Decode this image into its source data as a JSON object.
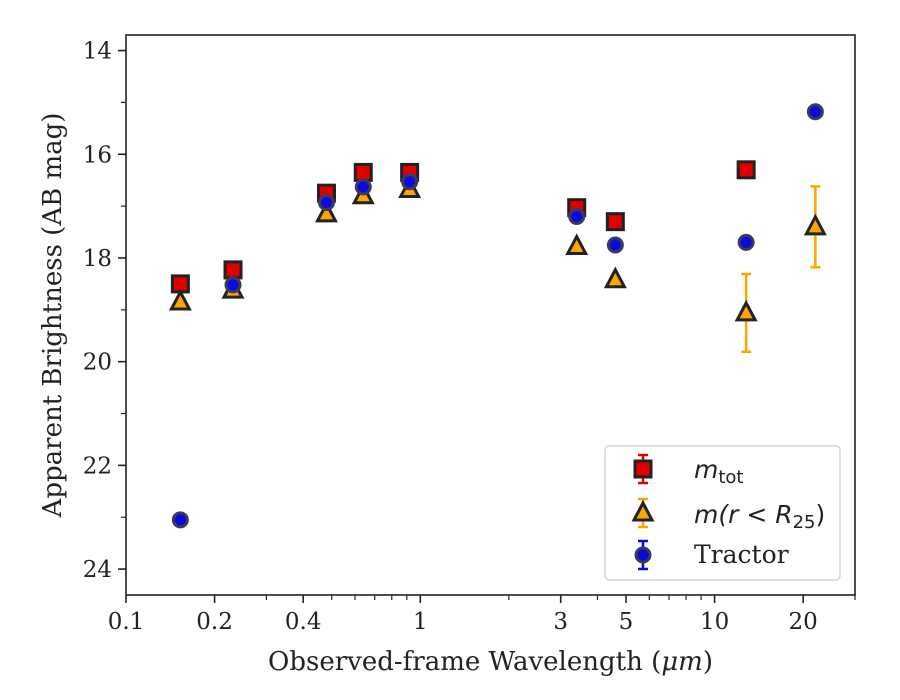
{
  "chart_data": {
    "type": "scatter",
    "xlabel": "Observed-frame Wavelength (",
    "xlabel_unit": "μm",
    "xlabel_close": ")",
    "ylabel": "Apparent Brightness (AB mag)",
    "xscale": "log",
    "xlim": [
      0.1,
      30
    ],
    "ylim": [
      24.5,
      13.7
    ],
    "y_inverted": true,
    "x_ticks": [
      {
        "value": 0.1,
        "label": "0.1"
      },
      {
        "value": 0.2,
        "label": "0.2"
      },
      {
        "value": 0.4,
        "label": "0.4"
      },
      {
        "value": 1,
        "label": "1"
      },
      {
        "value": 3,
        "label": "3"
      },
      {
        "value": 5,
        "label": "5"
      },
      {
        "value": 10,
        "label": "10"
      },
      {
        "value": 20,
        "label": "20"
      }
    ],
    "x_minor_ticks": [
      0.3,
      0.5,
      0.6,
      0.7,
      0.8,
      0.9,
      2,
      4,
      6,
      7,
      8,
      9,
      30
    ],
    "y_ticks": [
      {
        "value": 14,
        "label": "14"
      },
      {
        "value": 16,
        "label": "16"
      },
      {
        "value": 18,
        "label": "18"
      },
      {
        "value": 20,
        "label": "20"
      },
      {
        "value": 22,
        "label": "22"
      },
      {
        "value": 24,
        "label": "24"
      }
    ],
    "y_minor_ticks": [
      15,
      17,
      19,
      21,
      23
    ],
    "grid": false,
    "legend_position": "bottom-right",
    "series": [
      {
        "key": "mtot",
        "legend_main": "m",
        "legend_sub": "tot",
        "marker": "square",
        "color": "#e00000",
        "edge": "#222222",
        "x": [
          0.153,
          0.231,
          0.48,
          0.64,
          0.92,
          3.4,
          4.6,
          12.8,
          22.0
        ],
        "y": [
          18.5,
          18.23,
          16.75,
          16.35,
          16.35,
          17.03,
          17.3,
          16.3,
          null
        ],
        "yerr": [
          0,
          0,
          0,
          0,
          0,
          0,
          0,
          0,
          0
        ]
      },
      {
        "key": "mr25",
        "legend_main": "m(r < R",
        "legend_sub": "25",
        "legend_close": ")",
        "marker": "triangle",
        "color": "#ffa500",
        "edge": "#222222",
        "x": [
          0.153,
          0.231,
          0.48,
          0.64,
          0.92,
          3.4,
          4.6,
          12.8,
          22.0
        ],
        "y": [
          18.85,
          18.62,
          17.15,
          16.8,
          16.68,
          17.78,
          18.42,
          19.06,
          17.4
        ],
        "yerr": [
          0,
          0,
          0,
          0,
          0,
          0,
          0,
          0.75,
          0.78
        ]
      },
      {
        "key": "tractor",
        "legend_main": "Tractor",
        "marker": "circle",
        "color": "#0a0ae0",
        "edge": "#3a3a5a",
        "x": [
          0.153,
          0.231,
          0.48,
          0.64,
          0.92,
          3.4,
          4.6,
          12.8,
          22.0
        ],
        "y": [
          23.05,
          18.52,
          16.93,
          16.63,
          16.53,
          17.2,
          17.75,
          17.7,
          15.18
        ],
        "yerr": [
          0,
          0,
          0,
          0,
          0,
          0,
          0,
          0,
          0
        ]
      }
    ]
  }
}
